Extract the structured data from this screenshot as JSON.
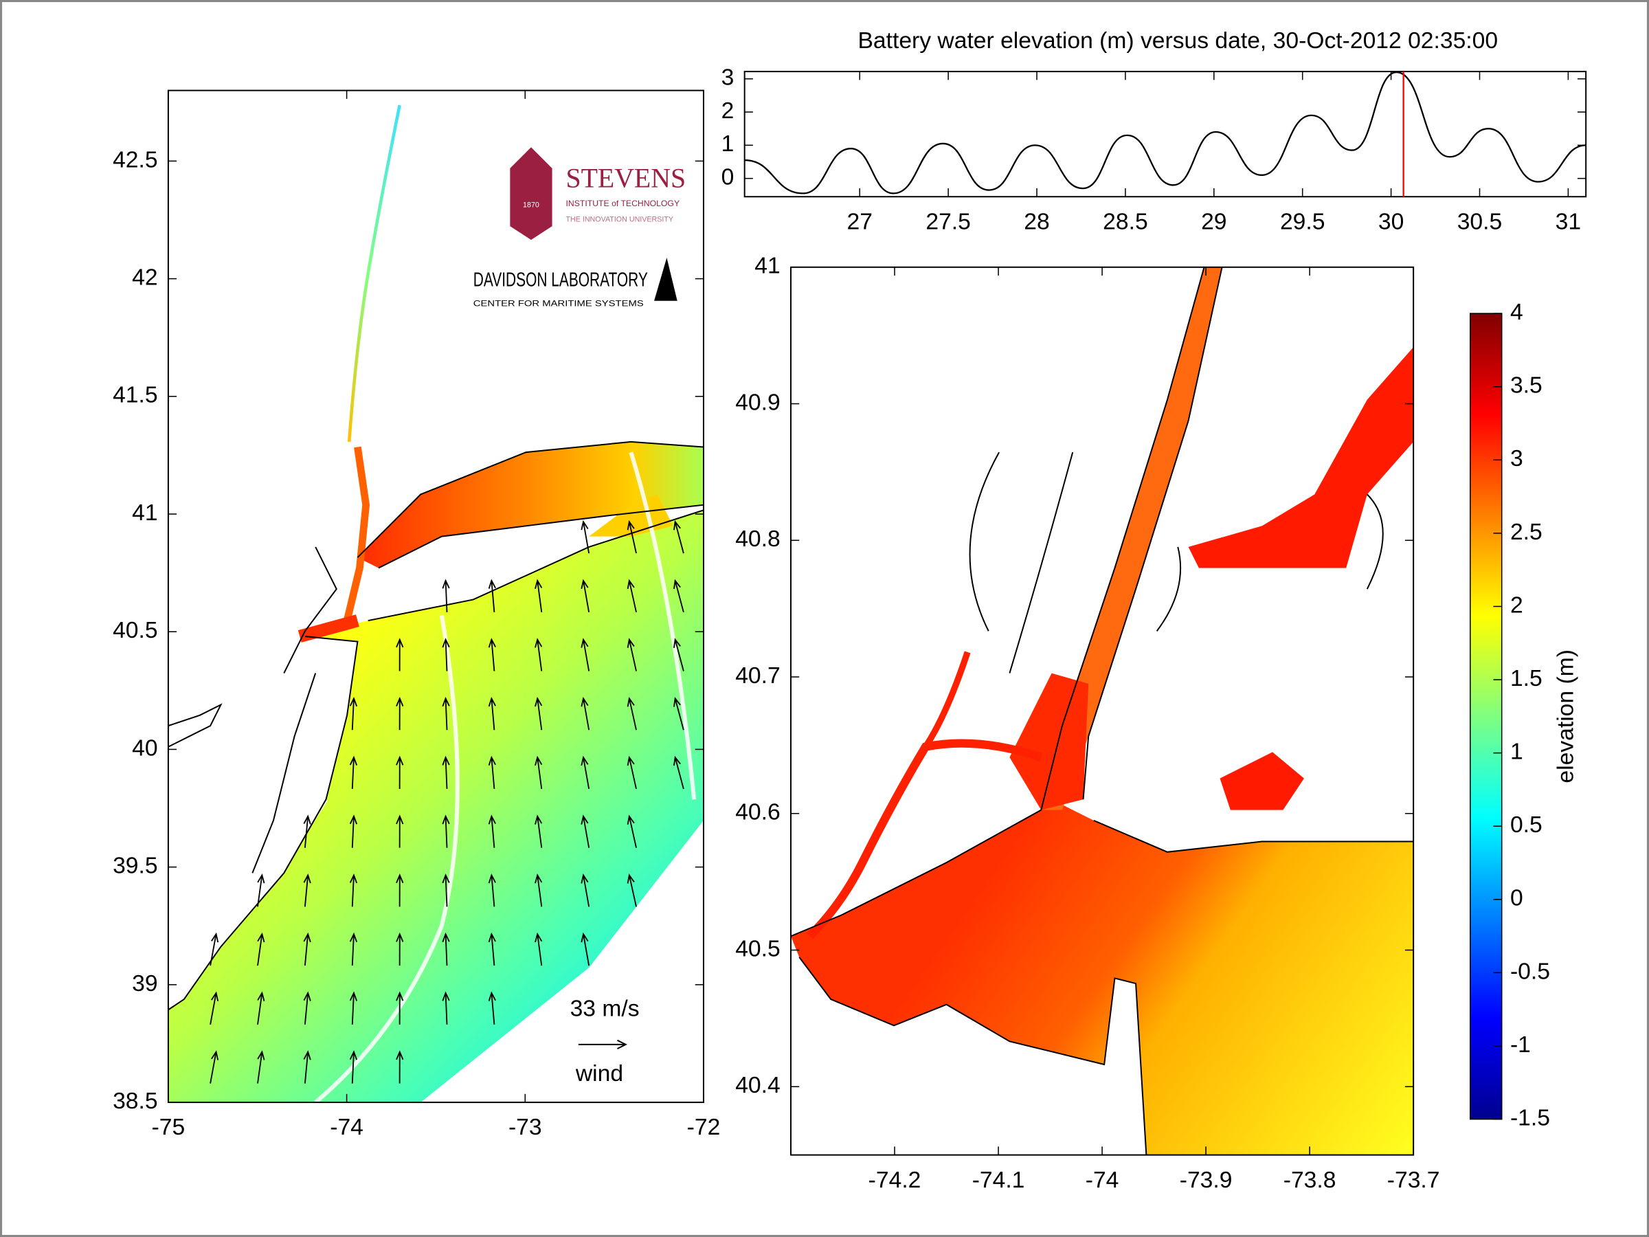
{
  "chart_data": [
    {
      "type": "line",
      "title": "Battery water elevation (m) versus date, 30-Oct-2012 02:35:00",
      "x": [
        26.35,
        26.68,
        26.95,
        27.19,
        27.47,
        27.73,
        27.99,
        28.26,
        28.51,
        28.77,
        29.01,
        29.27,
        29.55,
        29.78,
        30.03,
        30.33,
        30.55,
        30.83,
        31.1
      ],
      "values": [
        0.55,
        -0.45,
        0.9,
        -0.45,
        1.05,
        -0.35,
        1.0,
        -0.3,
        1.3,
        -0.2,
        1.4,
        0.1,
        1.9,
        0.85,
        3.2,
        0.65,
        1.5,
        -0.1,
        1.0
      ],
      "color": "#000000",
      "xlim": [
        26.35,
        31.1
      ],
      "ylim": [
        -0.55,
        3.22
      ],
      "xticks": [
        27,
        27.5,
        28,
        28.5,
        29,
        29.5,
        30,
        30.5,
        31
      ],
      "yticks": [
        0,
        1,
        2,
        3
      ],
      "marker": {
        "x": 30.07,
        "color": "#ff0000"
      }
    },
    {
      "type": "map",
      "xlim": [
        -75,
        -72
      ],
      "ylim": [
        38.5,
        42.8
      ],
      "xticks": [
        -75,
        -74,
        -73,
        -72
      ],
      "yticks": [
        38.5,
        39,
        39.5,
        40,
        40.5,
        41,
        41.5,
        42,
        42.5
      ],
      "annotations": [
        "33 m/s",
        "wind"
      ],
      "logos": [
        "STEVENS",
        "INSTITUTE of TECHNOLOGY",
        "THE INNOVATION UNIVERSITY",
        "1870",
        "DAVIDSON LABORATORY",
        "CENTER FOR MARITIME SYSTEMS"
      ]
    },
    {
      "type": "map",
      "xlim": [
        -74.3,
        -73.7
      ],
      "ylim": [
        40.35,
        41
      ],
      "xticks": [
        -74.2,
        -74.1,
        -74,
        -73.9,
        -73.8,
        -73.7
      ],
      "yticks": [
        40.4,
        40.5,
        40.6,
        40.7,
        40.8,
        40.9,
        41
      ]
    },
    {
      "type": "colorbar",
      "label": "elevation (m)",
      "clim": [
        -1.5,
        4
      ],
      "ticks": [
        4,
        3.5,
        3,
        2.5,
        2,
        1.5,
        1,
        0.5,
        0,
        -0.5,
        -1,
        -1.5
      ]
    }
  ]
}
